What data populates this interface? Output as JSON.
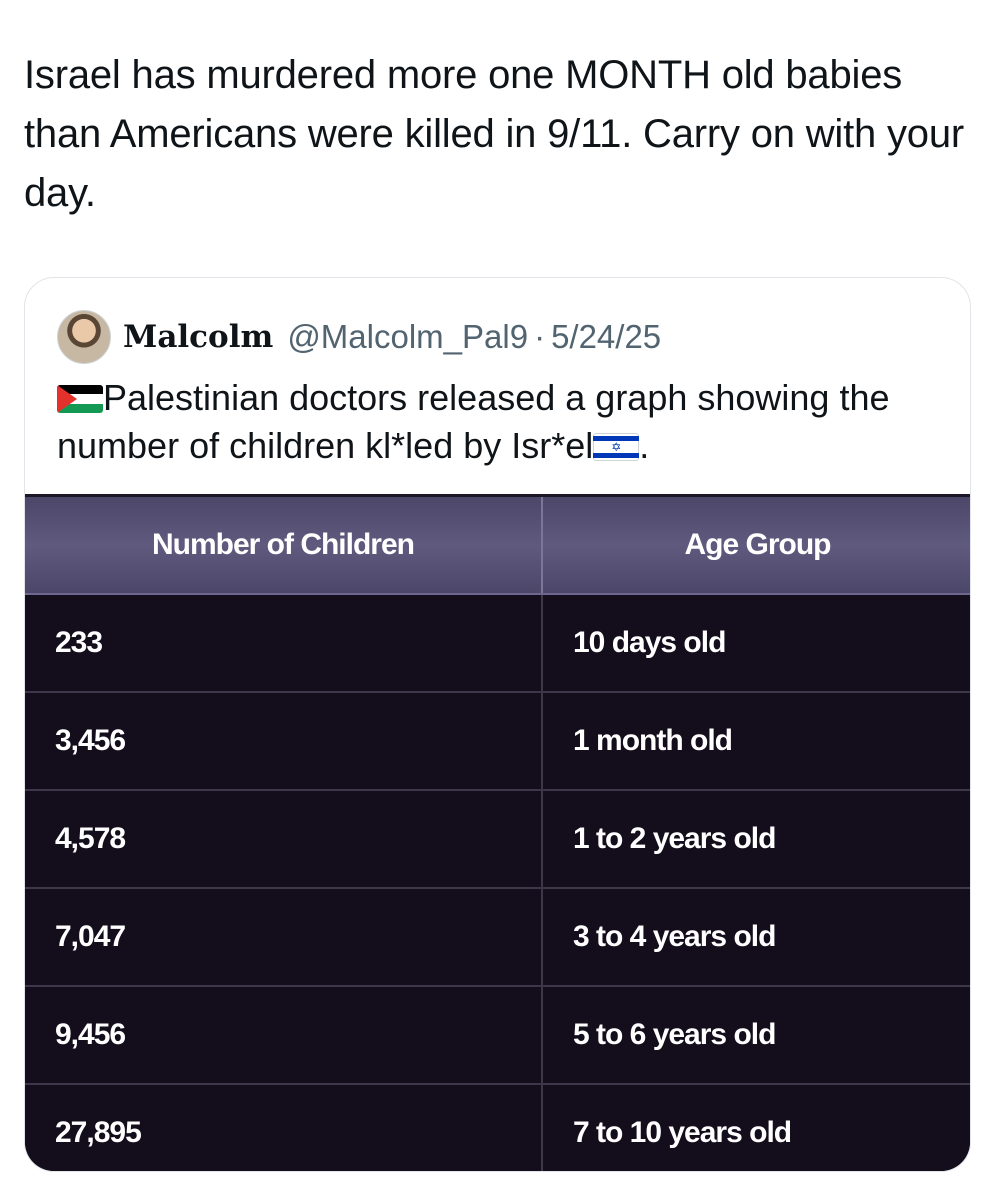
{
  "tweet": {
    "text": "Israel has murdered more one MONTH old babies than Americans were killed in 9/11. Carry on with your day."
  },
  "quote": {
    "author_name": "Malcolm",
    "author_handle": "@Malcolm_Pal9",
    "separator": "·",
    "date": "5/24/25",
    "body_main": "Palestinian doctors released a graph showing the number of children kl*led by Isr*el",
    "body_end": ".",
    "icons": [
      "avatar",
      "palestine-flag-icon",
      "israel-flag-icon"
    ]
  },
  "table": {
    "headers": [
      "Number of Children",
      "Age Group"
    ],
    "rows": [
      [
        "233",
        "10 days old"
      ],
      [
        "3,456",
        "1 month old"
      ],
      [
        "4,578",
        "1 to 2 years old"
      ],
      [
        "7,047",
        "3 to 4 years old"
      ],
      [
        "9,456",
        "5 to 6 years old"
      ],
      [
        "27,895",
        "7 to 10 years old"
      ]
    ]
  },
  "colors": {
    "text": "#0f1419",
    "muted": "#536471",
    "table_bg": "#140d1c",
    "header_bg": "#5f5a7e"
  }
}
